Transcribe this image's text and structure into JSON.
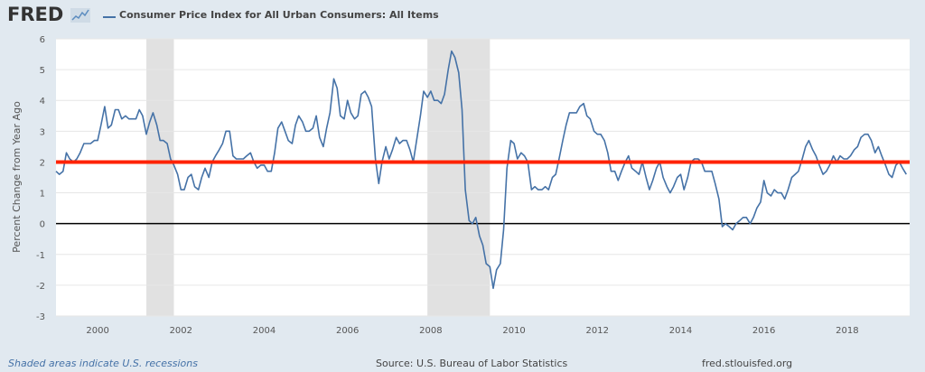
{
  "header": {
    "logo_text": "FRED",
    "logo_icon": "chart-line-icon"
  },
  "footer": {
    "recession_note": "Shaded areas indicate U.S. recessions",
    "source": "Source: U.S. Bureau of Labor Statistics",
    "site": "fred.stlouisfed.org"
  },
  "chart_data": {
    "type": "line",
    "legend": "Consumer Price Index for All Urban Consumers: All Items",
    "ylabel": "Percent Change from Year Ago",
    "xlabel": "",
    "xlim": [
      1999.0,
      2019.5
    ],
    "ylim": [
      -3,
      6
    ],
    "yticks": [
      -3,
      -2,
      -1,
      0,
      1,
      2,
      3,
      4,
      5,
      6
    ],
    "xticks": [
      "2000",
      "2002",
      "2004",
      "2006",
      "2008",
      "2010",
      "2012",
      "2014",
      "2016",
      "2018"
    ],
    "xtick_values": [
      2000,
      2002,
      2004,
      2006,
      2008,
      2010,
      2012,
      2014,
      2016,
      2018
    ],
    "recessions": [
      [
        2001.17,
        2001.83
      ],
      [
        2007.92,
        2009.42
      ]
    ],
    "reference_lines": [
      {
        "y": 2,
        "color": "#ff2200"
      },
      {
        "y": 0,
        "color": "#000000"
      }
    ],
    "series": [
      {
        "color": "#4572a7",
        "points": [
          [
            1999.0,
            1.7
          ],
          [
            1999.08,
            1.6
          ],
          [
            1999.17,
            1.7
          ],
          [
            1999.25,
            2.3
          ],
          [
            1999.33,
            2.1
          ],
          [
            1999.42,
            2.0
          ],
          [
            1999.5,
            2.1
          ],
          [
            1999.58,
            2.3
          ],
          [
            1999.67,
            2.6
          ],
          [
            1999.75,
            2.6
          ],
          [
            1999.83,
            2.6
          ],
          [
            1999.92,
            2.7
          ],
          [
            2000.0,
            2.7
          ],
          [
            2000.08,
            3.2
          ],
          [
            2000.17,
            3.8
          ],
          [
            2000.25,
            3.1
          ],
          [
            2000.33,
            3.2
          ],
          [
            2000.42,
            3.7
          ],
          [
            2000.5,
            3.7
          ],
          [
            2000.58,
            3.4
          ],
          [
            2000.67,
            3.5
          ],
          [
            2000.75,
            3.4
          ],
          [
            2000.83,
            3.4
          ],
          [
            2000.92,
            3.4
          ],
          [
            2001.0,
            3.7
          ],
          [
            2001.08,
            3.5
          ],
          [
            2001.17,
            2.9
          ],
          [
            2001.25,
            3.3
          ],
          [
            2001.33,
            3.6
          ],
          [
            2001.42,
            3.2
          ],
          [
            2001.5,
            2.7
          ],
          [
            2001.58,
            2.7
          ],
          [
            2001.67,
            2.6
          ],
          [
            2001.75,
            2.1
          ],
          [
            2001.83,
            1.9
          ],
          [
            2001.92,
            1.6
          ],
          [
            2002.0,
            1.1
          ],
          [
            2002.08,
            1.1
          ],
          [
            2002.17,
            1.5
          ],
          [
            2002.25,
            1.6
          ],
          [
            2002.33,
            1.2
          ],
          [
            2002.42,
            1.1
          ],
          [
            2002.5,
            1.5
          ],
          [
            2002.58,
            1.8
          ],
          [
            2002.67,
            1.5
          ],
          [
            2002.75,
            2.0
          ],
          [
            2002.83,
            2.2
          ],
          [
            2002.92,
            2.4
          ],
          [
            2003.0,
            2.6
          ],
          [
            2003.08,
            3.0
          ],
          [
            2003.17,
            3.0
          ],
          [
            2003.25,
            2.2
          ],
          [
            2003.33,
            2.1
          ],
          [
            2003.42,
            2.1
          ],
          [
            2003.5,
            2.1
          ],
          [
            2003.58,
            2.2
          ],
          [
            2003.67,
            2.3
          ],
          [
            2003.75,
            2.0
          ],
          [
            2003.83,
            1.8
          ],
          [
            2003.92,
            1.9
          ],
          [
            2004.0,
            1.9
          ],
          [
            2004.08,
            1.7
          ],
          [
            2004.17,
            1.7
          ],
          [
            2004.25,
            2.3
          ],
          [
            2004.33,
            3.1
          ],
          [
            2004.42,
            3.3
          ],
          [
            2004.5,
            3.0
          ],
          [
            2004.58,
            2.7
          ],
          [
            2004.67,
            2.6
          ],
          [
            2004.75,
            3.2
          ],
          [
            2004.83,
            3.5
          ],
          [
            2004.92,
            3.3
          ],
          [
            2005.0,
            3.0
          ],
          [
            2005.08,
            3.0
          ],
          [
            2005.17,
            3.1
          ],
          [
            2005.25,
            3.5
          ],
          [
            2005.33,
            2.8
          ],
          [
            2005.42,
            2.5
          ],
          [
            2005.5,
            3.1
          ],
          [
            2005.58,
            3.6
          ],
          [
            2005.67,
            4.7
          ],
          [
            2005.75,
            4.4
          ],
          [
            2005.83,
            3.5
          ],
          [
            2005.92,
            3.4
          ],
          [
            2006.0,
            4.0
          ],
          [
            2006.08,
            3.6
          ],
          [
            2006.17,
            3.4
          ],
          [
            2006.25,
            3.5
          ],
          [
            2006.33,
            4.2
          ],
          [
            2006.42,
            4.3
          ],
          [
            2006.5,
            4.1
          ],
          [
            2006.58,
            3.8
          ],
          [
            2006.67,
            2.1
          ],
          [
            2006.75,
            1.3
          ],
          [
            2006.83,
            2.0
          ],
          [
            2006.92,
            2.5
          ],
          [
            2007.0,
            2.1
          ],
          [
            2007.08,
            2.4
          ],
          [
            2007.17,
            2.8
          ],
          [
            2007.25,
            2.6
          ],
          [
            2007.33,
            2.7
          ],
          [
            2007.42,
            2.7
          ],
          [
            2007.5,
            2.4
          ],
          [
            2007.58,
            2.0
          ],
          [
            2007.67,
            2.8
          ],
          [
            2007.75,
            3.5
          ],
          [
            2007.83,
            4.3
          ],
          [
            2007.92,
            4.1
          ],
          [
            2008.0,
            4.3
          ],
          [
            2008.08,
            4.0
          ],
          [
            2008.17,
            4.0
          ],
          [
            2008.25,
            3.9
          ],
          [
            2008.33,
            4.2
          ],
          [
            2008.42,
            5.0
          ],
          [
            2008.5,
            5.6
          ],
          [
            2008.58,
            5.4
          ],
          [
            2008.67,
            4.9
          ],
          [
            2008.75,
            3.7
          ],
          [
            2008.83,
            1.1
          ],
          [
            2008.92,
            0.1
          ],
          [
            2009.0,
            0.0
          ],
          [
            2009.08,
            0.2
          ],
          [
            2009.17,
            -0.4
          ],
          [
            2009.25,
            -0.7
          ],
          [
            2009.33,
            -1.3
          ],
          [
            2009.42,
            -1.4
          ],
          [
            2009.5,
            -2.1
          ],
          [
            2009.58,
            -1.5
          ],
          [
            2009.67,
            -1.3
          ],
          [
            2009.75,
            -0.2
          ],
          [
            2009.83,
            1.8
          ],
          [
            2009.92,
            2.7
          ],
          [
            2010.0,
            2.6
          ],
          [
            2010.08,
            2.1
          ],
          [
            2010.17,
            2.3
          ],
          [
            2010.25,
            2.2
          ],
          [
            2010.33,
            2.0
          ],
          [
            2010.42,
            1.1
          ],
          [
            2010.5,
            1.2
          ],
          [
            2010.58,
            1.1
          ],
          [
            2010.67,
            1.1
          ],
          [
            2010.75,
            1.2
          ],
          [
            2010.83,
            1.1
          ],
          [
            2010.92,
            1.5
          ],
          [
            2011.0,
            1.6
          ],
          [
            2011.08,
            2.1
          ],
          [
            2011.17,
            2.7
          ],
          [
            2011.25,
            3.2
          ],
          [
            2011.33,
            3.6
          ],
          [
            2011.42,
            3.6
          ],
          [
            2011.5,
            3.6
          ],
          [
            2011.58,
            3.8
          ],
          [
            2011.67,
            3.9
          ],
          [
            2011.75,
            3.5
          ],
          [
            2011.83,
            3.4
          ],
          [
            2011.92,
            3.0
          ],
          [
            2012.0,
            2.9
          ],
          [
            2012.08,
            2.9
          ],
          [
            2012.17,
            2.7
          ],
          [
            2012.25,
            2.3
          ],
          [
            2012.33,
            1.7
          ],
          [
            2012.42,
            1.7
          ],
          [
            2012.5,
            1.4
          ],
          [
            2012.58,
            1.7
          ],
          [
            2012.67,
            2.0
          ],
          [
            2012.75,
            2.2
          ],
          [
            2012.83,
            1.8
          ],
          [
            2012.92,
            1.7
          ],
          [
            2013.0,
            1.6
          ],
          [
            2013.08,
            2.0
          ],
          [
            2013.17,
            1.5
          ],
          [
            2013.25,
            1.1
          ],
          [
            2013.33,
            1.4
          ],
          [
            2013.42,
            1.8
          ],
          [
            2013.5,
            2.0
          ],
          [
            2013.58,
            1.5
          ],
          [
            2013.67,
            1.2
          ],
          [
            2013.75,
            1.0
          ],
          [
            2013.83,
            1.2
          ],
          [
            2013.92,
            1.5
          ],
          [
            2014.0,
            1.6
          ],
          [
            2014.08,
            1.1
          ],
          [
            2014.17,
            1.5
          ],
          [
            2014.25,
            2.0
          ],
          [
            2014.33,
            2.1
          ],
          [
            2014.42,
            2.1
          ],
          [
            2014.5,
            2.0
          ],
          [
            2014.58,
            1.7
          ],
          [
            2014.67,
            1.7
          ],
          [
            2014.75,
            1.7
          ],
          [
            2014.83,
            1.3
          ],
          [
            2014.92,
            0.8
          ],
          [
            2015.0,
            -0.1
          ],
          [
            2015.08,
            0.0
          ],
          [
            2015.17,
            -0.1
          ],
          [
            2015.25,
            -0.2
          ],
          [
            2015.33,
            0.0
          ],
          [
            2015.42,
            0.1
          ],
          [
            2015.5,
            0.2
          ],
          [
            2015.58,
            0.2
          ],
          [
            2015.67,
            0.0
          ],
          [
            2015.75,
            0.2
          ],
          [
            2015.83,
            0.5
          ],
          [
            2015.92,
            0.7
          ],
          [
            2016.0,
            1.4
          ],
          [
            2016.08,
            1.0
          ],
          [
            2016.17,
            0.9
          ],
          [
            2016.25,
            1.1
          ],
          [
            2016.33,
            1.0
          ],
          [
            2016.42,
            1.0
          ],
          [
            2016.5,
            0.8
          ],
          [
            2016.58,
            1.1
          ],
          [
            2016.67,
            1.5
          ],
          [
            2016.75,
            1.6
          ],
          [
            2016.83,
            1.7
          ],
          [
            2016.92,
            2.1
          ],
          [
            2017.0,
            2.5
          ],
          [
            2017.08,
            2.7
          ],
          [
            2017.17,
            2.4
          ],
          [
            2017.25,
            2.2
          ],
          [
            2017.33,
            1.9
          ],
          [
            2017.42,
            1.6
          ],
          [
            2017.5,
            1.7
          ],
          [
            2017.58,
            1.9
          ],
          [
            2017.67,
            2.2
          ],
          [
            2017.75,
            2.0
          ],
          [
            2017.83,
            2.2
          ],
          [
            2017.92,
            2.1
          ],
          [
            2018.0,
            2.1
          ],
          [
            2018.08,
            2.2
          ],
          [
            2018.17,
            2.4
          ],
          [
            2018.25,
            2.5
          ],
          [
            2018.33,
            2.8
          ],
          [
            2018.42,
            2.9
          ],
          [
            2018.5,
            2.9
          ],
          [
            2018.58,
            2.7
          ],
          [
            2018.67,
            2.3
          ],
          [
            2018.75,
            2.5
          ],
          [
            2018.83,
            2.2
          ],
          [
            2018.92,
            1.9
          ],
          [
            2019.0,
            1.6
          ],
          [
            2019.08,
            1.5
          ],
          [
            2019.17,
            1.9
          ],
          [
            2019.25,
            2.0
          ],
          [
            2019.33,
            1.8
          ],
          [
            2019.42,
            1.6
          ]
        ]
      }
    ]
  }
}
